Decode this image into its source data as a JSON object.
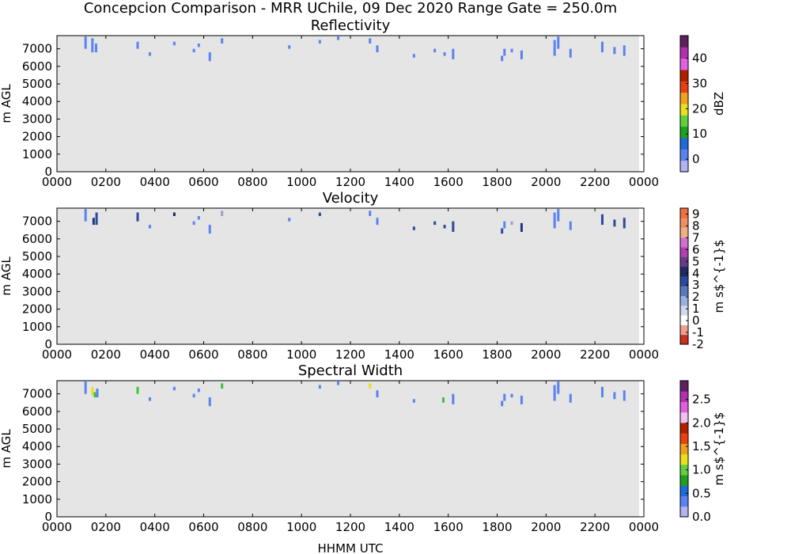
{
  "figure": {
    "title": "Concepcion Comparison - MRR UChile, 09 Dec 2020 Range Gate = 250.0m",
    "xlabel": "HHMM UTC"
  },
  "chart_data": [
    {
      "type": "heatmap",
      "title": "Reflectivity",
      "ylabel": "m AGL",
      "colorbar_label": "dBZ",
      "colorbar_ticks": [
        "0",
        "10",
        "20",
        "30",
        "40"
      ],
      "colorbar_range": [
        -5,
        49
      ],
      "xticks": [
        "0000",
        "0200",
        "0400",
        "0600",
        "0800",
        "1000",
        "1200",
        "1400",
        "1600",
        "1800",
        "2000",
        "2200",
        "0000"
      ],
      "yticks": [
        "0",
        "1000",
        "2000",
        "3000",
        "4000",
        "5000",
        "6000",
        "7000"
      ],
      "xlim_hours": [
        0,
        24
      ],
      "ylim": [
        0,
        7750
      ],
      "background": "#e5e5e5",
      "echoes": [
        {
          "t": 1.17,
          "y0": 7000,
          "y1": 7700,
          "color": "#5a82f0"
        },
        {
          "t": 1.45,
          "y0": 6800,
          "y1": 7600,
          "color": "#5a82f0"
        },
        {
          "t": 1.6,
          "y0": 6800,
          "y1": 7300,
          "color": "#5a82f0"
        },
        {
          "t": 3.3,
          "y0": 7000,
          "y1": 7400,
          "color": "#5a82f0"
        },
        {
          "t": 3.8,
          "y0": 6600,
          "y1": 6800,
          "color": "#5a82f0"
        },
        {
          "t": 4.8,
          "y0": 7200,
          "y1": 7400,
          "color": "#5a82f0"
        },
        {
          "t": 5.6,
          "y0": 6800,
          "y1": 7000,
          "color": "#5a82f0"
        },
        {
          "t": 5.8,
          "y0": 7100,
          "y1": 7300,
          "color": "#5a82f0"
        },
        {
          "t": 6.25,
          "y0": 6300,
          "y1": 6800,
          "color": "#5a82f0"
        },
        {
          "t": 6.75,
          "y0": 7300,
          "y1": 7600,
          "color": "#5a82f0"
        },
        {
          "t": 9.5,
          "y0": 7000,
          "y1": 7200,
          "color": "#5a82f0"
        },
        {
          "t": 10.75,
          "y0": 7300,
          "y1": 7500,
          "color": "#5a82f0"
        },
        {
          "t": 11.5,
          "y0": 7500,
          "y1": 7700,
          "color": "#5a82f0"
        },
        {
          "t": 12.8,
          "y0": 7300,
          "y1": 7600,
          "color": "#5a82f0"
        },
        {
          "t": 13.1,
          "y0": 6800,
          "y1": 7200,
          "color": "#5a82f0"
        },
        {
          "t": 14.6,
          "y0": 6500,
          "y1": 6700,
          "color": "#5a82f0"
        },
        {
          "t": 15.45,
          "y0": 6800,
          "y1": 7000,
          "color": "#5a82f0"
        },
        {
          "t": 15.85,
          "y0": 6600,
          "y1": 6800,
          "color": "#5a82f0"
        },
        {
          "t": 16.2,
          "y0": 6400,
          "y1": 7000,
          "color": "#5a82f0"
        },
        {
          "t": 18.2,
          "y0": 6300,
          "y1": 6600,
          "color": "#5a82f0"
        },
        {
          "t": 18.3,
          "y0": 6600,
          "y1": 7000,
          "color": "#5a82f0"
        },
        {
          "t": 18.6,
          "y0": 6800,
          "y1": 7000,
          "color": "#5a82f0"
        },
        {
          "t": 19.0,
          "y0": 6400,
          "y1": 6900,
          "color": "#5a82f0"
        },
        {
          "t": 20.35,
          "y0": 6600,
          "y1": 7500,
          "color": "#5a82f0"
        },
        {
          "t": 20.5,
          "y0": 7000,
          "y1": 7700,
          "color": "#5a82f0"
        },
        {
          "t": 21.0,
          "y0": 6500,
          "y1": 7000,
          "color": "#5a82f0"
        },
        {
          "t": 22.3,
          "y0": 6800,
          "y1": 7400,
          "color": "#5a82f0"
        },
        {
          "t": 22.8,
          "y0": 6700,
          "y1": 7100,
          "color": "#5a82f0"
        },
        {
          "t": 23.2,
          "y0": 6600,
          "y1": 7200,
          "color": "#5a82f0"
        }
      ]
    },
    {
      "type": "heatmap",
      "title": "Velocity",
      "ylabel": "m s$^{-1}$",
      "ylabel_left": "m AGL",
      "colorbar_ticks": [
        "-2",
        "-1",
        "0",
        "1",
        "2",
        "3",
        "4",
        "5",
        "6",
        "7",
        "8",
        "9"
      ],
      "colorbar_range": [
        -2,
        9.5
      ],
      "xticks": [
        "0000",
        "0200",
        "0400",
        "0600",
        "0800",
        "1000",
        "1200",
        "1400",
        "1600",
        "1800",
        "2000",
        "2200",
        "0000"
      ],
      "yticks": [
        "0",
        "1000",
        "2000",
        "3000",
        "4000",
        "5000",
        "6000",
        "7000"
      ],
      "xlim_hours": [
        0,
        24
      ],
      "ylim": [
        0,
        7750
      ],
      "background": "#e5e5e5",
      "echoes": [
        {
          "t": 1.17,
          "y0": 7000,
          "y1": 7700,
          "color": "#5a82f0"
        },
        {
          "t": 1.5,
          "y0": 6800,
          "y1": 7200,
          "color": "#1f3a7a"
        },
        {
          "t": 1.62,
          "y0": 6800,
          "y1": 7500,
          "color": "#2b4a9c"
        },
        {
          "t": 3.3,
          "y0": 7000,
          "y1": 7500,
          "color": "#2b4a9c"
        },
        {
          "t": 3.8,
          "y0": 6600,
          "y1": 6800,
          "color": "#5a82f0"
        },
        {
          "t": 4.8,
          "y0": 7300,
          "y1": 7500,
          "color": "#1f2a60"
        },
        {
          "t": 5.6,
          "y0": 6800,
          "y1": 7000,
          "color": "#5a82f0"
        },
        {
          "t": 5.8,
          "y0": 7100,
          "y1": 7300,
          "color": "#5a82f0"
        },
        {
          "t": 6.25,
          "y0": 6300,
          "y1": 6800,
          "color": "#5a82f0"
        },
        {
          "t": 6.75,
          "y0": 7300,
          "y1": 7600,
          "color": "#9aa0cc"
        },
        {
          "t": 9.5,
          "y0": 7000,
          "y1": 7200,
          "color": "#5a82f0"
        },
        {
          "t": 10.75,
          "y0": 7300,
          "y1": 7500,
          "color": "#2b4a9c"
        },
        {
          "t": 12.8,
          "y0": 7300,
          "y1": 7600,
          "color": "#5a82f0"
        },
        {
          "t": 13.1,
          "y0": 6800,
          "y1": 7200,
          "color": "#5a82f0"
        },
        {
          "t": 14.6,
          "y0": 6500,
          "y1": 6700,
          "color": "#2b4a9c"
        },
        {
          "t": 15.45,
          "y0": 6800,
          "y1": 7000,
          "color": "#2b4a9c"
        },
        {
          "t": 15.85,
          "y0": 6600,
          "y1": 6800,
          "color": "#2b4a9c"
        },
        {
          "t": 16.2,
          "y0": 6400,
          "y1": 7000,
          "color": "#2b4a9c"
        },
        {
          "t": 18.2,
          "y0": 6300,
          "y1": 6600,
          "color": "#2b4a9c"
        },
        {
          "t": 18.3,
          "y0": 6600,
          "y1": 7000,
          "color": "#5a82f0"
        },
        {
          "t": 18.6,
          "y0": 6800,
          "y1": 7000,
          "color": "#9aa0cc"
        },
        {
          "t": 19.0,
          "y0": 6400,
          "y1": 6900,
          "color": "#1f3a7a"
        },
        {
          "t": 20.35,
          "y0": 6600,
          "y1": 7500,
          "color": "#5a82f0"
        },
        {
          "t": 20.5,
          "y0": 7000,
          "y1": 7700,
          "color": "#5a82f0"
        },
        {
          "t": 21.0,
          "y0": 6500,
          "y1": 7000,
          "color": "#5a82f0"
        },
        {
          "t": 22.3,
          "y0": 6800,
          "y1": 7400,
          "color": "#2b4a9c"
        },
        {
          "t": 22.8,
          "y0": 6700,
          "y1": 7100,
          "color": "#2b4a9c"
        },
        {
          "t": 23.2,
          "y0": 6600,
          "y1": 7200,
          "color": "#2b4a9c"
        }
      ]
    },
    {
      "type": "heatmap",
      "title": "Spectral Width",
      "ylabel": "m s$^{-1}$",
      "ylabel_left": "m AGL",
      "colorbar_ticks": [
        "0.0",
        "0.5",
        "1.0",
        "1.5",
        "2.0",
        "2.5"
      ],
      "colorbar_range": [
        0,
        2.9
      ],
      "xticks": [
        "0000",
        "0200",
        "0400",
        "0600",
        "0800",
        "1000",
        "1200",
        "1400",
        "1600",
        "1800",
        "2000",
        "2200",
        "0000"
      ],
      "yticks": [
        "0",
        "1000",
        "2000",
        "3000",
        "4000",
        "5000",
        "6000",
        "7000"
      ],
      "xlim_hours": [
        0,
        24
      ],
      "ylim": [
        0,
        7750
      ],
      "background": "#e5e5e5",
      "echoes": [
        {
          "t": 1.17,
          "y0": 7000,
          "y1": 7700,
          "color": "#5a82f0"
        },
        {
          "t": 1.45,
          "y0": 6900,
          "y1": 7400,
          "color": "#e8e020"
        },
        {
          "t": 1.55,
          "y0": 6800,
          "y1": 7100,
          "color": "#40c040"
        },
        {
          "t": 1.65,
          "y0": 6800,
          "y1": 7300,
          "color": "#5a82f0"
        },
        {
          "t": 3.3,
          "y0": 7000,
          "y1": 7400,
          "color": "#40c040"
        },
        {
          "t": 3.8,
          "y0": 6600,
          "y1": 6800,
          "color": "#5a82f0"
        },
        {
          "t": 4.8,
          "y0": 7200,
          "y1": 7400,
          "color": "#5a82f0"
        },
        {
          "t": 5.6,
          "y0": 6800,
          "y1": 7000,
          "color": "#5a82f0"
        },
        {
          "t": 5.8,
          "y0": 7100,
          "y1": 7300,
          "color": "#5a82f0"
        },
        {
          "t": 6.25,
          "y0": 6300,
          "y1": 6800,
          "color": "#5a82f0"
        },
        {
          "t": 6.75,
          "y0": 7300,
          "y1": 7600,
          "color": "#40c040"
        },
        {
          "t": 10.75,
          "y0": 7300,
          "y1": 7500,
          "color": "#5a82f0"
        },
        {
          "t": 11.5,
          "y0": 7500,
          "y1": 7700,
          "color": "#5a82f0"
        },
        {
          "t": 12.8,
          "y0": 7300,
          "y1": 7600,
          "color": "#e8e020"
        },
        {
          "t": 13.1,
          "y0": 6800,
          "y1": 7200,
          "color": "#5a82f0"
        },
        {
          "t": 14.6,
          "y0": 6500,
          "y1": 6700,
          "color": "#5a82f0"
        },
        {
          "t": 15.8,
          "y0": 6500,
          "y1": 6800,
          "color": "#40c040"
        },
        {
          "t": 16.2,
          "y0": 6400,
          "y1": 7000,
          "color": "#5a82f0"
        },
        {
          "t": 18.2,
          "y0": 6300,
          "y1": 6600,
          "color": "#5a82f0"
        },
        {
          "t": 18.3,
          "y0": 6600,
          "y1": 7000,
          "color": "#5a82f0"
        },
        {
          "t": 18.6,
          "y0": 6800,
          "y1": 7000,
          "color": "#5a82f0"
        },
        {
          "t": 19.0,
          "y0": 6400,
          "y1": 6900,
          "color": "#5a82f0"
        },
        {
          "t": 20.35,
          "y0": 6600,
          "y1": 7500,
          "color": "#5a82f0"
        },
        {
          "t": 20.5,
          "y0": 7000,
          "y1": 7700,
          "color": "#5a82f0"
        },
        {
          "t": 21.0,
          "y0": 6500,
          "y1": 7000,
          "color": "#5a82f0"
        },
        {
          "t": 22.3,
          "y0": 6800,
          "y1": 7400,
          "color": "#5a82f0"
        },
        {
          "t": 22.8,
          "y0": 6700,
          "y1": 7100,
          "color": "#5a82f0"
        },
        {
          "t": 23.2,
          "y0": 6600,
          "y1": 7200,
          "color": "#5a82f0"
        }
      ]
    }
  ],
  "colorbars": {
    "reflectivity": [
      "#b3b3f2",
      "#5a82f0",
      "#1f6ad8",
      "#20a020",
      "#60d040",
      "#e8e020",
      "#f0a020",
      "#e84010",
      "#b02000",
      "#e060e0",
      "#b030b0",
      "#602060"
    ],
    "velocity": [
      "#c83020",
      "#f0a090",
      "#ffffff",
      "#d0d8f0",
      "#9ab0e0",
      "#5a78c0",
      "#2b4a9c",
      "#1f2a60",
      "#6a3a8a",
      "#b040b0",
      "#d070d0",
      "#f0b080",
      "#f09060",
      "#f07040"
    ],
    "spectral_width": [
      "#b3b3f2",
      "#5a82f0",
      "#1f6ad8",
      "#20a020",
      "#60d040",
      "#e8e020",
      "#f0a020",
      "#e84010",
      "#b02000",
      "#f0c0f0",
      "#e060e0",
      "#b030b0",
      "#602060"
    ]
  }
}
